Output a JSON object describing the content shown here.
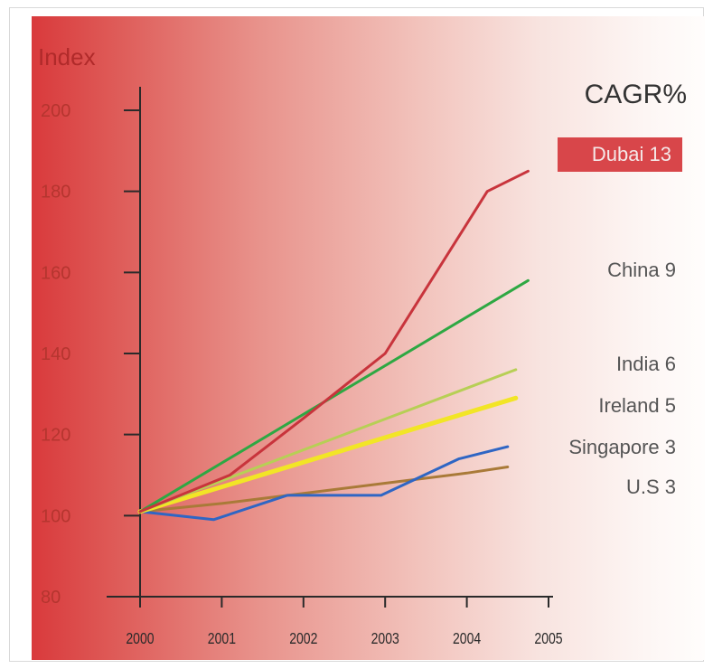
{
  "chart_data": {
    "type": "line",
    "ylabel": "Index",
    "legend_title": "CAGR%",
    "x": [
      2000,
      2001,
      2002,
      2003,
      2004,
      2005
    ],
    "x_tick_labels": [
      "2000",
      "2001",
      "2002",
      "2003",
      "2004",
      "2005"
    ],
    "y_ticks": [
      80,
      100,
      120,
      140,
      160,
      180,
      200
    ],
    "y_tick_labels": [
      "80",
      "100",
      "120",
      "140",
      "160",
      "180",
      "200"
    ],
    "xlim": [
      2000,
      2005
    ],
    "ylim": [
      80,
      210
    ],
    "grid": false,
    "legend_position": "right",
    "series": [
      {
        "name": "Dubai 13",
        "color": "#c8343c",
        "highlighted": true,
        "points": [
          [
            2000,
            101
          ],
          [
            2001.1,
            110
          ],
          [
            2002,
            124
          ],
          [
            2003,
            140
          ],
          [
            2004.25,
            180
          ],
          [
            2004.75,
            185
          ]
        ]
      },
      {
        "name": "China 9",
        "color": "#2ea843",
        "points": [
          [
            2000,
            101
          ],
          [
            2004.75,
            158
          ]
        ]
      },
      {
        "name": "India 6",
        "color": "#b7cf55",
        "points": [
          [
            2000,
            101
          ],
          [
            2004.6,
            136
          ]
        ]
      },
      {
        "name": "Ireland 5",
        "color": "#f2e526",
        "points": [
          [
            2000,
            101
          ],
          [
            2004.6,
            129
          ]
        ]
      },
      {
        "name": "Singapore 3",
        "color": "#2f66c4",
        "points": [
          [
            2000,
            101
          ],
          [
            2000.9,
            99
          ],
          [
            2001.8,
            105
          ],
          [
            2002.95,
            105
          ],
          [
            2003.9,
            114
          ],
          [
            2004.5,
            117
          ]
        ]
      },
      {
        "name": "U.S 3",
        "color": "#a97a38",
        "points": [
          [
            2000,
            101
          ],
          [
            2001,
            103
          ],
          [
            2002,
            105.5
          ],
          [
            2003,
            108
          ],
          [
            2004,
            110.5
          ],
          [
            2004.5,
            112
          ]
        ]
      }
    ]
  }
}
